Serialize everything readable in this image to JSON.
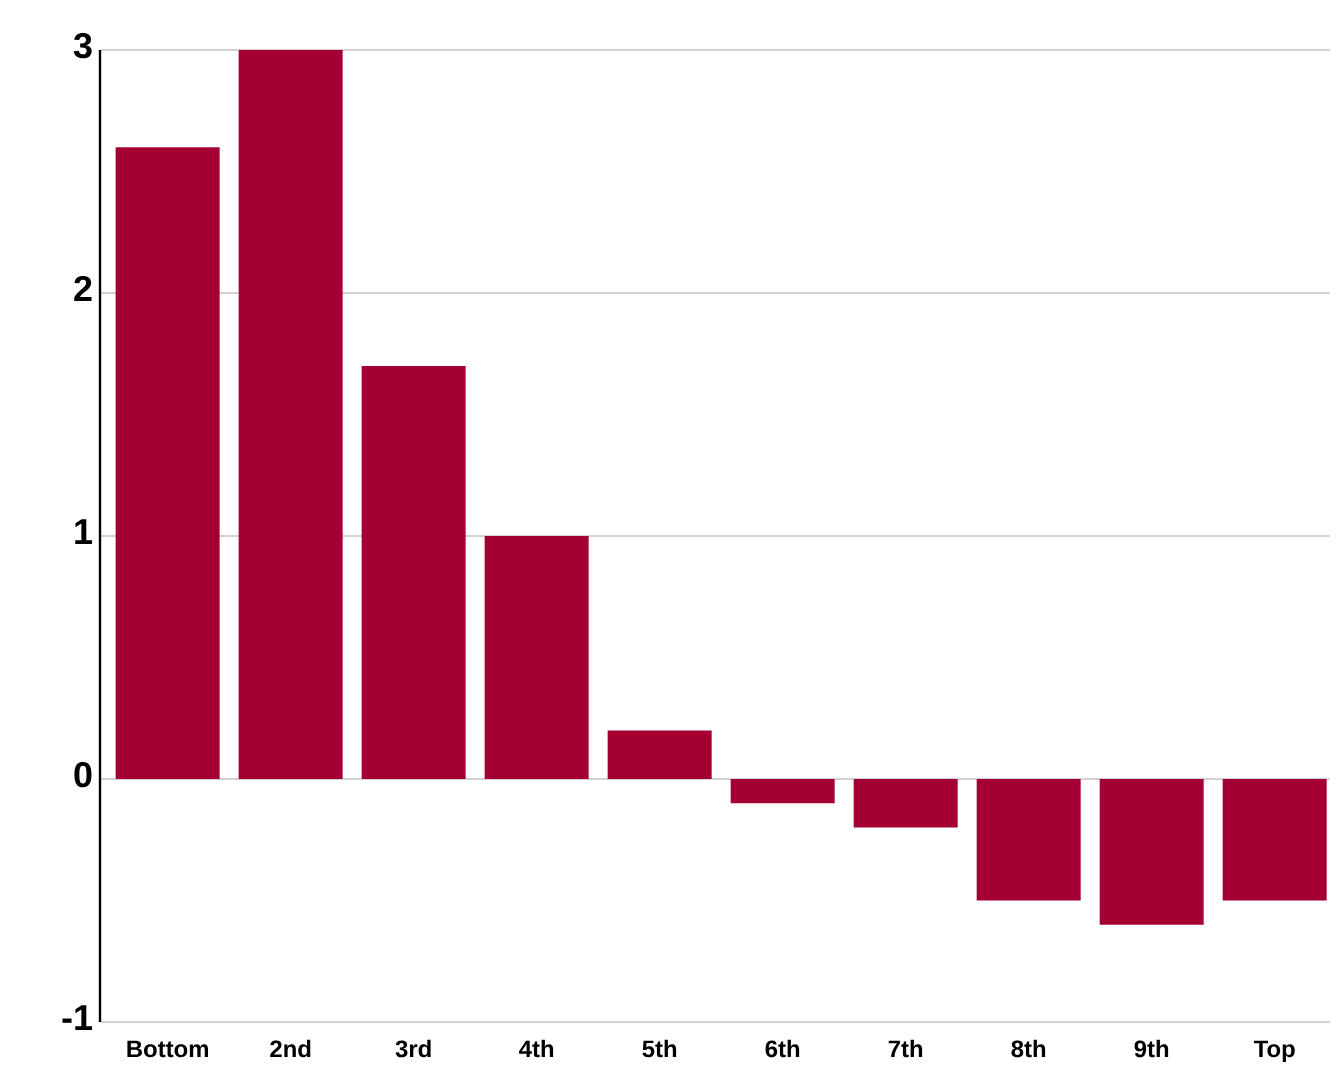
{
  "chart_data": {
    "type": "bar",
    "categories": [
      "Bottom",
      "2nd",
      "3rd",
      "4th",
      "5th",
      "6th",
      "7th",
      "8th",
      "9th",
      "Top"
    ],
    "values": [
      2.6,
      3.0,
      1.7,
      1.0,
      0.2,
      -0.1,
      -0.2,
      -0.5,
      -0.6,
      -0.5
    ],
    "color": "#a50034",
    "ylim": [
      -1,
      3
    ],
    "yticks": [
      -1,
      0,
      1,
      2,
      3
    ],
    "grid": "y"
  }
}
